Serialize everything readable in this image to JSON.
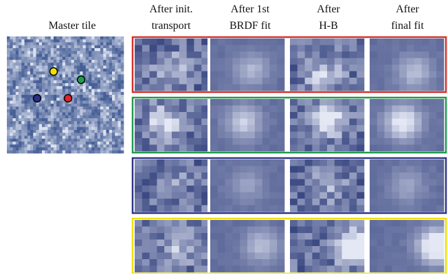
{
  "master_tile": {
    "title": "Master tile"
  },
  "columns": [
    {
      "lines": [
        "After init.",
        "transport"
      ]
    },
    {
      "lines": [
        "After 1st",
        "BRDF fit"
      ]
    },
    {
      "lines": [
        "After",
        "H-B"
      ]
    },
    {
      "lines": [
        "After",
        "final fit"
      ]
    }
  ]
}
